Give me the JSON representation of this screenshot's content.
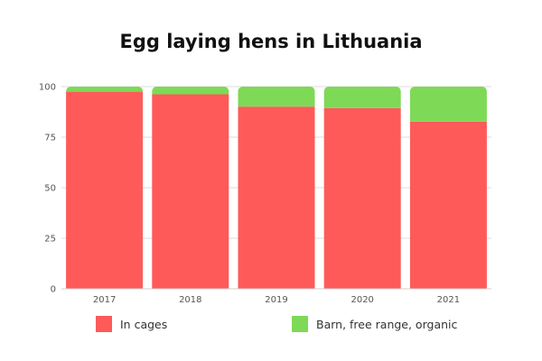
{
  "chart_data": {
    "type": "bar",
    "stacked": true,
    "title": "Egg laying hens in Lithuania",
    "xlabel": "",
    "ylabel": "",
    "categories": [
      "2017",
      "2018",
      "2019",
      "2020",
      "2021"
    ],
    "series": [
      {
        "name": "In cages",
        "color": "#ff5a5a",
        "values": [
          97.5,
          96.2,
          90.1,
          89.4,
          82.7
        ]
      },
      {
        "name": "Barn, free range, organic",
        "color": "#7ed957",
        "values": [
          2.5,
          3.8,
          9.9,
          10.6,
          17.3
        ]
      }
    ],
    "ylim": [
      0,
      100
    ],
    "yticks": [
      "0",
      "25",
      "50",
      "75",
      "100"
    ],
    "grid": true,
    "legend": "bottom"
  }
}
